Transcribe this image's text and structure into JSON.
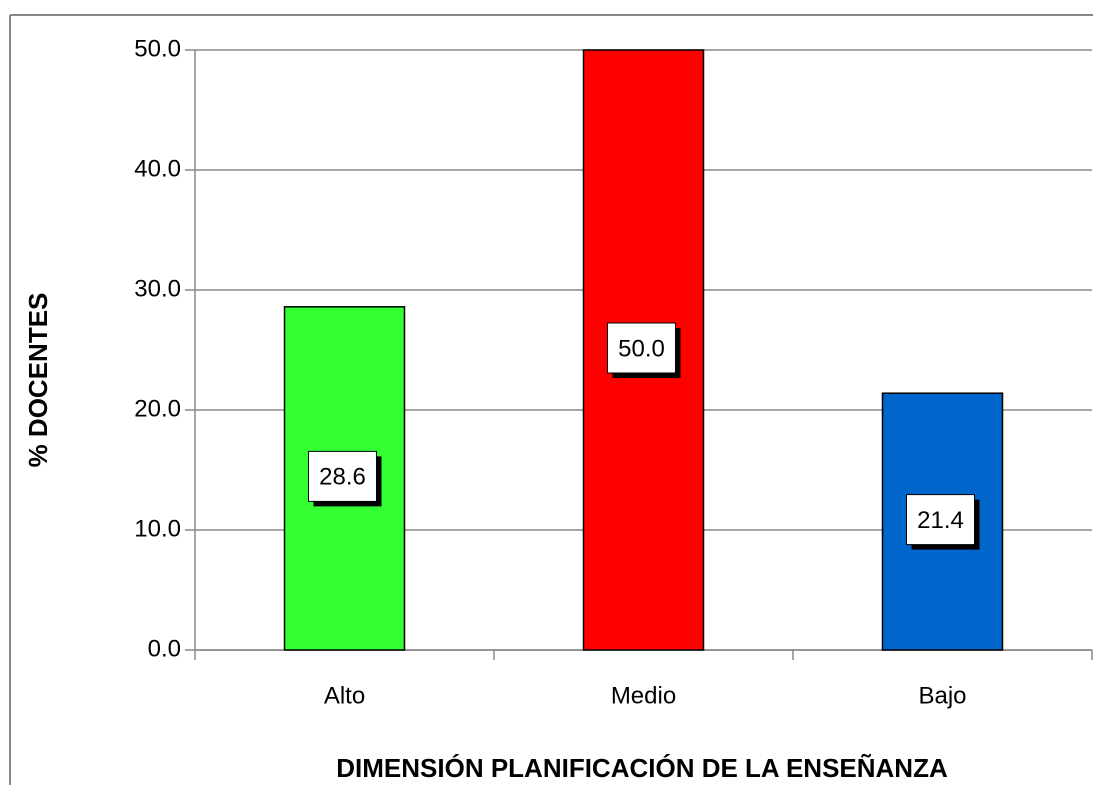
{
  "chart_data": {
    "type": "bar",
    "x_label": "DIMENSIÓN PLANIFICACIÓN DE LA ENSEÑANZA",
    "y_label": "% DOCENTES",
    "categories": [
      "Alto",
      "Medio",
      "Bajo"
    ],
    "values": [
      28.6,
      50.0,
      21.4
    ],
    "value_labels": [
      "28.6",
      "50.0",
      "21.4"
    ],
    "colors": [
      "#33ff33",
      "#ff0000",
      "#0066cc"
    ],
    "ylim": [
      0,
      50
    ],
    "yticks": [
      {
        "value": 0,
        "label": "0.0"
      },
      {
        "value": 10,
        "label": "10.0"
      },
      {
        "value": 20,
        "label": "20.0"
      },
      {
        "value": 30,
        "label": "30.0"
      },
      {
        "value": 40,
        "label": "40.0"
      },
      {
        "value": 50,
        "label": "50.0"
      }
    ],
    "grid": true
  }
}
